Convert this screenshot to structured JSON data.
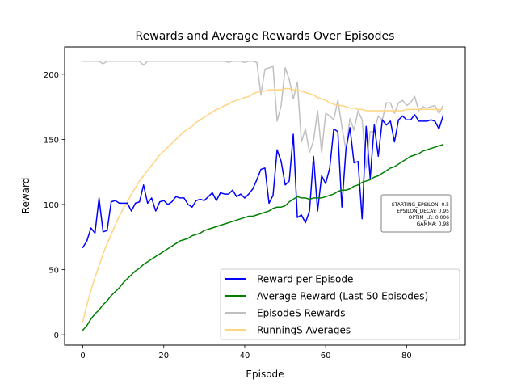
{
  "chart_data": {
    "type": "line",
    "title": "Rewards and Average Rewards Over Episodes",
    "xlabel": "Episode",
    "ylabel": "Reward",
    "xlim": [
      -4.5,
      94.5
    ],
    "ylim": [
      -8,
      221
    ],
    "x_ticks": [
      0,
      20,
      40,
      60,
      80
    ],
    "y_ticks": [
      0,
      50,
      100,
      150,
      200
    ],
    "grid": false,
    "legend_position": "lower right",
    "series": [
      {
        "name": "Reward per Episode",
        "color": "#0000ff",
        "x_start": 0,
        "values": [
          67,
          72,
          82,
          78,
          105,
          79,
          80,
          102,
          103,
          101,
          101,
          101,
          95,
          101,
          102,
          115,
          101,
          105,
          95,
          102,
          103,
          100,
          102,
          106,
          105,
          105,
          100,
          98,
          103,
          104,
          103,
          106,
          109,
          103,
          109,
          108,
          108,
          111,
          106,
          108,
          105,
          108,
          112,
          119,
          127,
          128,
          101,
          107,
          142,
          133,
          115,
          118,
          154,
          90,
          92,
          86,
          95,
          137,
          95,
          122,
          116,
          128,
          158,
          156,
          98,
          142,
          159,
          132,
          133,
          89,
          160,
          120,
          161,
          137,
          165,
          161,
          164,
          148,
          165,
          168,
          165,
          165,
          169,
          164,
          164,
          164,
          165,
          164,
          158,
          168
        ]
      },
      {
        "name": "Average Reward (Last 50 Episodes)",
        "color": "#008000",
        "x_start": 0,
        "values": [
          3.5,
          7,
          12,
          16,
          19,
          23,
          26,
          30,
          33,
          36,
          40,
          43,
          46,
          49,
          51,
          54,
          56,
          58,
          60,
          62,
          64,
          66,
          68,
          70,
          72,
          73,
          74,
          76,
          77,
          78,
          80,
          81,
          82,
          83,
          84,
          85,
          86,
          87,
          88,
          89,
          90,
          91,
          91,
          92,
          93,
          94,
          95,
          97,
          98,
          98,
          99,
          102,
          104,
          106,
          105,
          105,
          104,
          105,
          105,
          105,
          106,
          107,
          108,
          110,
          111,
          111,
          112,
          114,
          115,
          117,
          118,
          119,
          121,
          122,
          124,
          126,
          128,
          129,
          131,
          133,
          135,
          137,
          138,
          139,
          141,
          142,
          143,
          144,
          145,
          146
        ]
      },
      {
        "name": "EpisodeS Rewards",
        "color": "#c0c0c0",
        "x_start": 0,
        "values": [
          210,
          210,
          210,
          210,
          210,
          208,
          210,
          210,
          210,
          210,
          210,
          210,
          210,
          210,
          210,
          207,
          210,
          210,
          210,
          210,
          210,
          210,
          210,
          210,
          210,
          210,
          210,
          210,
          210,
          210,
          210,
          210,
          210,
          210,
          210,
          210,
          209,
          210,
          210,
          210,
          209,
          210,
          210,
          209,
          184,
          204,
          205,
          206,
          164,
          176,
          205,
          196,
          181,
          194,
          148,
          158,
          140,
          149,
          172,
          140,
          170,
          168,
          165,
          180,
          160,
          142,
          166,
          157,
          172,
          165,
          128,
          156,
          156,
          168,
          165,
          178,
          178,
          170,
          178,
          180,
          176,
          178,
          183,
          172,
          175,
          174,
          175,
          176,
          170,
          176
        ]
      },
      {
        "name": "RunningS Averages",
        "color": "#ffd480",
        "x_start": 0,
        "values": [
          10,
          23,
          34,
          44,
          53,
          62,
          70,
          77,
          84,
          91,
          97,
          102,
          108,
          113,
          118,
          122,
          126,
          130,
          134,
          138,
          141,
          144,
          147,
          150,
          153,
          156,
          158,
          160,
          163,
          165,
          167,
          169,
          171,
          173,
          174,
          176,
          177,
          179,
          180,
          181,
          182,
          183,
          185,
          186,
          187,
          187,
          188,
          188,
          188,
          188,
          189,
          189,
          188,
          188,
          187,
          186,
          185,
          184,
          182,
          181,
          180,
          178,
          177,
          176,
          176,
          175,
          174,
          174,
          173,
          173,
          172,
          172,
          172,
          172,
          172,
          172,
          172,
          172,
          172,
          172,
          173,
          173,
          173,
          173,
          173,
          173,
          173,
          173,
          173,
          173
        ]
      }
    ],
    "annotation_box": {
      "lines": [
        "STARTING_EPSILON: 0.5",
        "EPSILON_DECAY: 0.95",
        "OPTIM_LR: 0.006",
        "GAMMA: 0.98"
      ]
    }
  }
}
